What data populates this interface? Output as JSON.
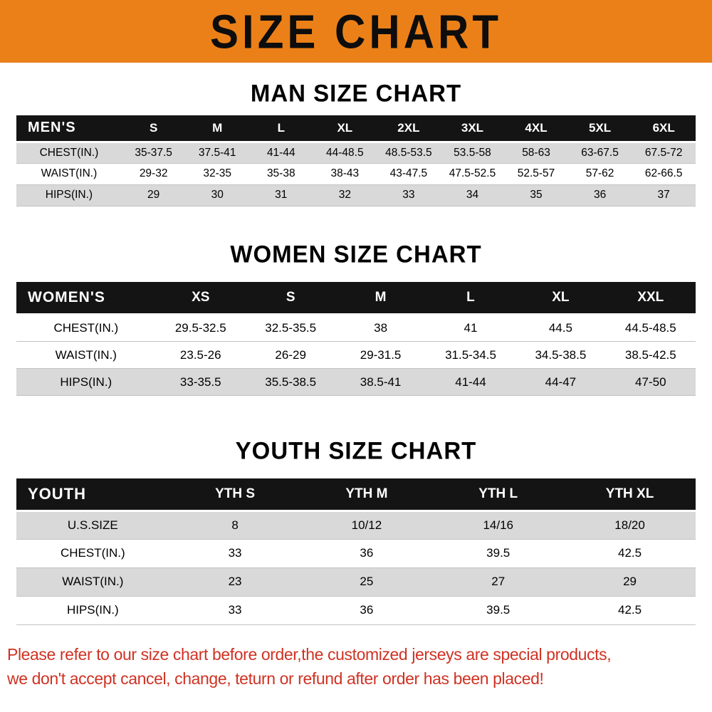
{
  "banner": {
    "title": "SIZE CHART"
  },
  "men": {
    "heading": "MAN SIZE CHART",
    "table": {
      "header": [
        "MEN'S",
        "S",
        "M",
        "L",
        "XL",
        "2XL",
        "3XL",
        "4XL",
        "5XL",
        "6XL"
      ],
      "rows": [
        [
          "CHEST(IN.)",
          "35-37.5",
          "37.5-41",
          "41-44",
          "44-48.5",
          "48.5-53.5",
          "53.5-58",
          "58-63",
          "63-67.5",
          "67.5-72"
        ],
        [
          "WAIST(IN.)",
          "29-32",
          "32-35",
          "35-38",
          "38-43",
          "43-47.5",
          "47.5-52.5",
          "52.5-57",
          "57-62",
          "62-66.5"
        ],
        [
          "HIPS(IN.)",
          "29",
          "30",
          "31",
          "32",
          "33",
          "34",
          "35",
          "36",
          "37"
        ]
      ]
    }
  },
  "women": {
    "heading": "WOMEN SIZE CHART",
    "table": {
      "header": [
        "WOMEN'S",
        "XS",
        "S",
        "M",
        "L",
        "XL",
        "XXL"
      ],
      "rows": [
        [
          "CHEST(IN.)",
          "29.5-32.5",
          "32.5-35.5",
          "38",
          "41",
          "44.5",
          "44.5-48.5"
        ],
        [
          "WAIST(IN.)",
          "23.5-26",
          "26-29",
          "29-31.5",
          "31.5-34.5",
          "34.5-38.5",
          "38.5-42.5"
        ],
        [
          "HIPS(IN.)",
          "33-35.5",
          "35.5-38.5",
          "38.5-41",
          "41-44",
          "44-47",
          "47-50"
        ]
      ]
    }
  },
  "youth": {
    "heading": "YOUTH SIZE CHART",
    "table": {
      "header": [
        "YOUTH",
        "YTH S",
        "YTH M",
        "YTH L",
        "YTH XL"
      ],
      "rows": [
        [
          "U.S.SIZE",
          "8",
          "10/12",
          "14/16",
          "18/20"
        ],
        [
          "CHEST(IN.)",
          "33",
          "36",
          "39.5",
          "42.5"
        ],
        [
          "WAIST(IN.)",
          "23",
          "25",
          "27",
          "29"
        ],
        [
          "HIPS(IN.)",
          "33",
          "36",
          "39.5",
          "42.5"
        ]
      ]
    }
  },
  "footer": {
    "line1": "Please refer to our size chart before order,the customized jerseys are special products,",
    "line2": "we don't accept cancel, change, teturn or refund after order has been placed!"
  },
  "colors": {
    "banner_bg": "#ec8018",
    "header_bg": "#141414",
    "stripe": "#d9d9d9",
    "footer_text": "#cf3223"
  }
}
